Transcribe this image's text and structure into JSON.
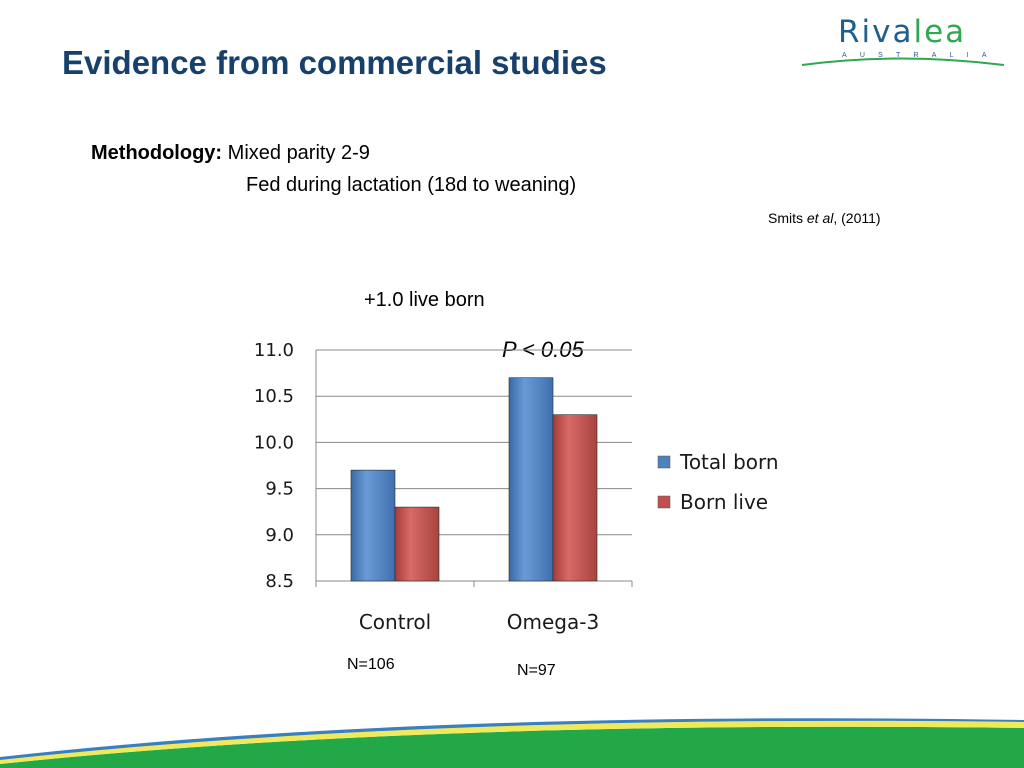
{
  "slide": {
    "title": "Evidence from commercial studies",
    "logo": {
      "name": "Riva",
      "name_accent": "lea",
      "sub": "AUSTRALIA"
    },
    "methodology_label": "Methodology:",
    "methodology_line1": "Mixed parity 2-9",
    "methodology_line2": "Fed during lactation (18d to weaning)",
    "citation": {
      "author": "Smits",
      "etal": "et al",
      "year": ", (2011)"
    },
    "annotation_live": "+1.0 live born",
    "annotation_p": "P < 0.05",
    "n_control": "N=106",
    "n_omega": "N=97"
  },
  "chart_data": {
    "type": "bar",
    "title": "",
    "xlabel": "",
    "ylabel": "",
    "categories": [
      "Control",
      "Omega-3"
    ],
    "series": [
      {
        "name": "Total born",
        "values": [
          9.7,
          10.7
        ],
        "color": "#4f81bd"
      },
      {
        "name": "Born live",
        "values": [
          9.3,
          10.3
        ],
        "color": "#c0504d"
      }
    ],
    "ylim": [
      8.5,
      11.0
    ],
    "yticks": [
      "8.5",
      "9.0",
      "9.5",
      "10.0",
      "10.5",
      "11.0"
    ],
    "grid": true,
    "legend_position": "right"
  },
  "colors": {
    "title": "#17406d",
    "logo_blue": "#1f5f8f",
    "logo_green": "#2fa84f",
    "grid": "#888888"
  }
}
